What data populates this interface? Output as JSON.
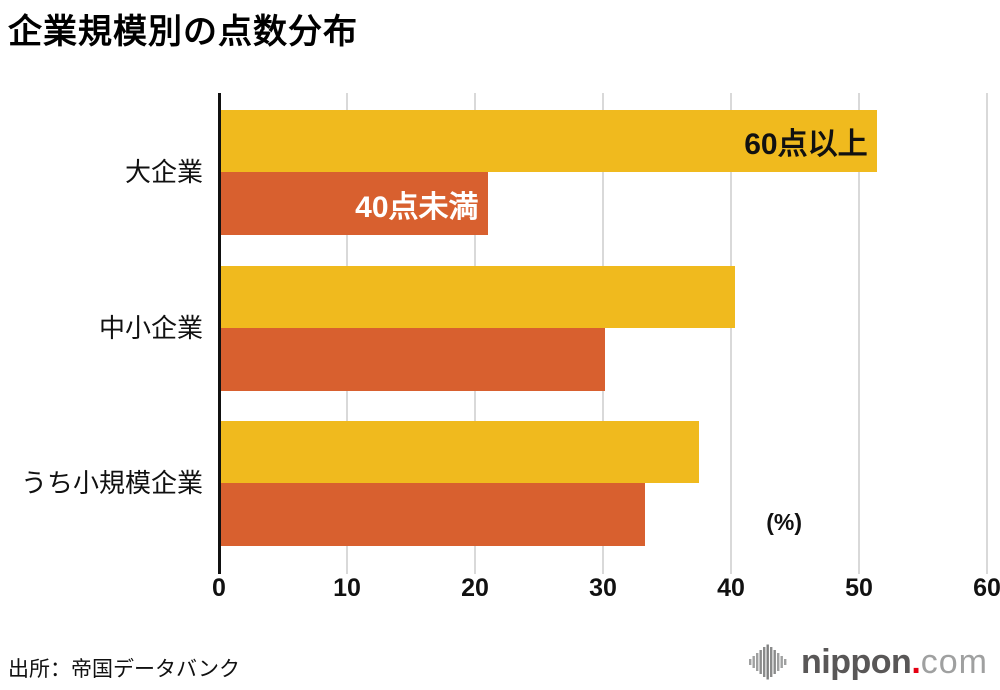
{
  "title": "企業規模別の点数分布",
  "source": "出所：帝国データバンク",
  "logo": {
    "icon": "soundwave-bars-icon",
    "name": "nippon",
    "dot": ".",
    "tld": "com"
  },
  "chart_data": {
    "type": "bar",
    "orientation": "horizontal",
    "title": "企業規模別の点数分布",
    "categories": [
      "大企業",
      "中小企業",
      "うち小規模企業"
    ],
    "series": [
      {
        "name": "60点以上",
        "color": "#F0BA1E",
        "text_color": "#111111",
        "values": [
          51.3,
          40.2,
          37.4
        ]
      },
      {
        "name": "40点未満",
        "color": "#D8602F",
        "text_color": "#FFFFFF",
        "values": [
          20.9,
          30.1,
          33.2
        ]
      }
    ],
    "xlim": [
      0,
      60
    ],
    "x_ticks": [
      "0",
      "10",
      "20",
      "30",
      "40",
      "50",
      "60"
    ],
    "x_unit": "(%)",
    "grid": true,
    "gridline_color": "#D9D9D9",
    "axis_color": "#111111",
    "legend_position": "labels-inside-first-group-bars"
  }
}
